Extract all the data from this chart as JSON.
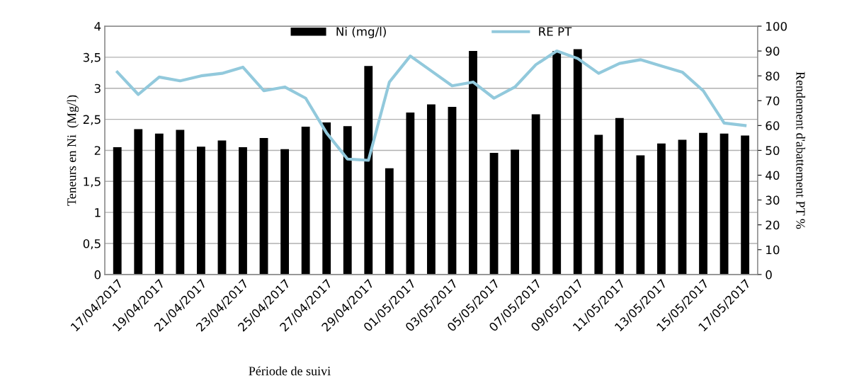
{
  "chart_data": {
    "type": "bar",
    "xlabel": "Période de suivi",
    "ylabel": "Teneurs en Ni  (Mg/l)",
    "y2label": "Rendement d'abattement PT %",
    "categories": [
      "17/04/2017",
      null,
      "19/04/2017",
      null,
      "21/04/2017",
      null,
      "23/04/2017",
      null,
      "25/04/2017",
      null,
      "27/04/2017",
      null,
      "29/04/2017",
      null,
      "01/05/2017",
      null,
      "03/05/2017",
      null,
      "05/05/2017",
      null,
      "07/05/2017",
      null,
      "09/05/2017",
      null,
      "11/05/2017",
      null,
      "13/05/2017",
      null,
      "15/05/2017",
      null,
      "17/05/2017"
    ],
    "series": [
      {
        "name": "Ni (mg/l)",
        "color": "#000000",
        "values": [
          2.05,
          2.34,
          2.27,
          2.33,
          2.06,
          2.16,
          2.05,
          2.2,
          2.02,
          2.38,
          2.45,
          2.39,
          3.36,
          1.71,
          2.61,
          2.74,
          2.7,
          3.6,
          1.96,
          2.01,
          2.58,
          3.6,
          3.63,
          2.25,
          2.52,
          1.92,
          2.11,
          2.17,
          2.28,
          2.27,
          2.24
        ]
      },
      {
        "name": "RE PT",
        "type": "line",
        "axis": "y2",
        "color": "#92c9dc",
        "values": [
          81.5,
          72.5,
          79.5,
          78,
          80,
          81,
          83.5,
          74,
          75.5,
          71,
          57,
          46.5,
          46,
          77.5,
          88,
          82,
          76,
          77.5,
          71,
          75.5,
          84.5,
          90,
          87,
          81,
          85,
          86.5,
          84,
          81.5,
          74,
          61,
          60
        ]
      }
    ],
    "ylim": [
      0,
      4
    ],
    "yticks": [
      0,
      {
        "value": 0.5,
        "label": "0,5"
      },
      1,
      {
        "value": 1.5,
        "label": "1,5"
      },
      2,
      {
        "value": 2.5,
        "label": "2,5"
      },
      3,
      {
        "value": 3.5,
        "label": "3,5"
      },
      4
    ],
    "y2lim": [
      0,
      100
    ],
    "y2ticks": [
      0,
      10,
      20,
      30,
      40,
      50,
      60,
      70,
      80,
      90,
      100
    ],
    "grid": "y",
    "legend": "top",
    "marker": "none",
    "line_style": "solid"
  }
}
